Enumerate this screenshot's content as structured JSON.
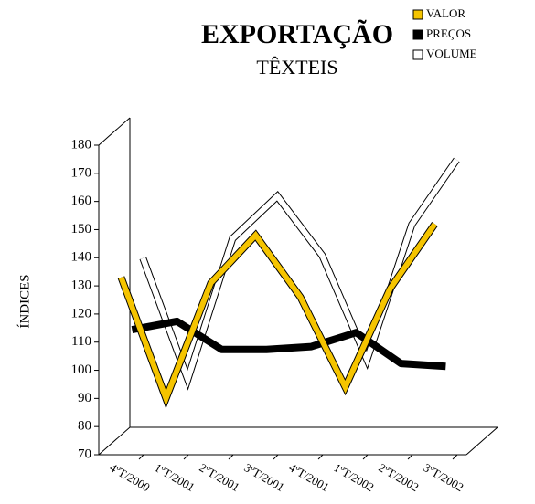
{
  "chart_data": {
    "type": "line",
    "title": "EXPORTAÇÃO",
    "subtitle": "TÊXTEIS",
    "y_label": "ÍNDICES",
    "categories": [
      "4ºT/2000",
      "1ºT/2001",
      "2ºT/2001",
      "3ºT/2001",
      "4ºT/2001",
      "1ºT/2002",
      "2ºT/2002",
      "3ºT/2002"
    ],
    "series": [
      {
        "name": "VALOR",
        "color": "#f5c400",
        "values": [
          133,
          90,
          131,
          148,
          126,
          94,
          129,
          152
        ]
      },
      {
        "name": "PREÇOS",
        "color": "#000000",
        "values": [
          111,
          114,
          104,
          104,
          105,
          110,
          99,
          98
        ]
      },
      {
        "name": "VOLUME",
        "color": "#ffffff",
        "values": [
          133,
          90,
          140,
          155,
          134,
          97,
          145,
          168
        ]
      }
    ],
    "ylim": [
      70,
      180
    ],
    "yticks": [
      70,
      80,
      90,
      100,
      110,
      120,
      130,
      140,
      150,
      160,
      170,
      180
    ],
    "legend": "top-right"
  }
}
